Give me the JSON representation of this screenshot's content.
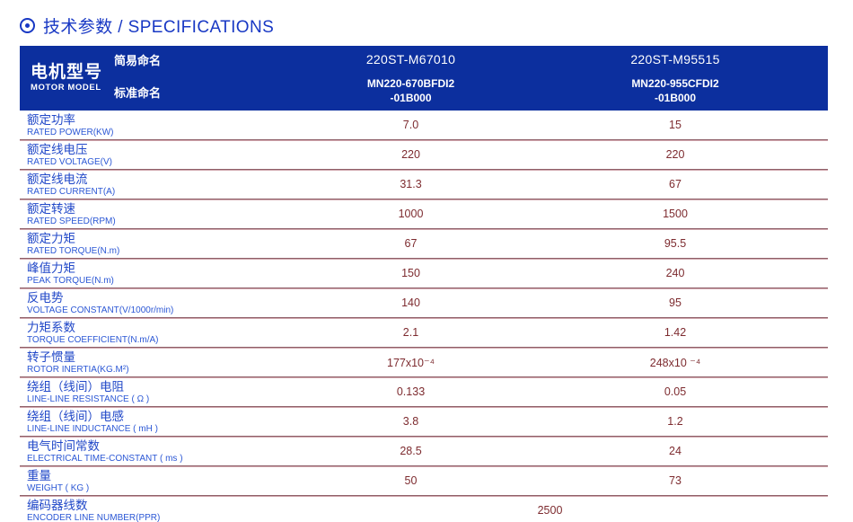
{
  "title": {
    "icon": "circled-dot",
    "text": "技术参数 / SPECIFICATIONS"
  },
  "table": {
    "header": {
      "motor_model_cn": "电机型号",
      "motor_model_en": "MOTOR MODEL",
      "simple_name_label": "简易命名",
      "standard_name_label": "标准命名",
      "columns": [
        {
          "simple_name": "220ST-M67010",
          "standard_name": "MN220-670BFDI2\n-01B000"
        },
        {
          "simple_name": "220ST-M95515",
          "standard_name": "MN220-955CFDI2\n-01B000"
        }
      ]
    },
    "rows": [
      {
        "cn": "额定功率",
        "en": "RATED POWER(KW)",
        "values": [
          "7.0",
          "15"
        ]
      },
      {
        "cn": "额定线电压",
        "en": "RATED VOLTAGE(V)",
        "values": [
          "220",
          "220"
        ]
      },
      {
        "cn": "额定线电流",
        "en": "RATED CURRENT(A)",
        "values": [
          "31.3",
          "67"
        ]
      },
      {
        "cn": "额定转速",
        "en": "RATED SPEED(RPM)",
        "values": [
          "1000",
          "1500"
        ]
      },
      {
        "cn": "额定力矩",
        "en": "RATED TORQUE(N.m)",
        "values": [
          "67",
          "95.5"
        ]
      },
      {
        "cn": "峰值力矩",
        "en": "PEAK TORQUE(N.m)",
        "values": [
          "150",
          "240"
        ]
      },
      {
        "cn": "反电势",
        "en": "VOLTAGE CONSTANT(V/1000r/min)",
        "values": [
          "140",
          "95"
        ]
      },
      {
        "cn": "力矩系数",
        "en": "TORQUE COEFFICIENT(N.m/A)",
        "values": [
          "2.1",
          "1.42"
        ]
      },
      {
        "cn": "转子惯量",
        "en": "ROTOR INERTIA(KG.M²)",
        "values": [
          "177x10⁻⁴",
          "248x10 ⁻⁴"
        ]
      },
      {
        "cn": "绕组（线间）电阻",
        "en": "LINE-LINE RESISTANCE ( Ω )",
        "values": [
          "0.133",
          "0.05"
        ]
      },
      {
        "cn": "绕组（线间）电感",
        "en": "LINE-LINE INDUCTANCE ( mH )",
        "values": [
          "3.8",
          "1.2"
        ]
      },
      {
        "cn": "电气时间常数",
        "en": "ELECTRICAL TIME-CONSTANT ( ms )",
        "values": [
          "28.5",
          "24"
        ]
      },
      {
        "cn": "重量",
        "en": "WEIGHT ( KG )",
        "values": [
          "50",
          "73"
        ]
      },
      {
        "cn": "编码器线数",
        "en": "ENCODER LINE NUMBER(PPR)",
        "values": [
          "2500"
        ],
        "span": true
      }
    ]
  },
  "colors": {
    "header_bg": "#0c2f9e",
    "title_blue": "#1838c4",
    "label_blue": "#2148c8",
    "label_en_blue": "#2b57d5",
    "value_maroon": "#7d2b2f",
    "divider_dark": "#8e5f68",
    "divider_light": "#d0a6ad"
  }
}
